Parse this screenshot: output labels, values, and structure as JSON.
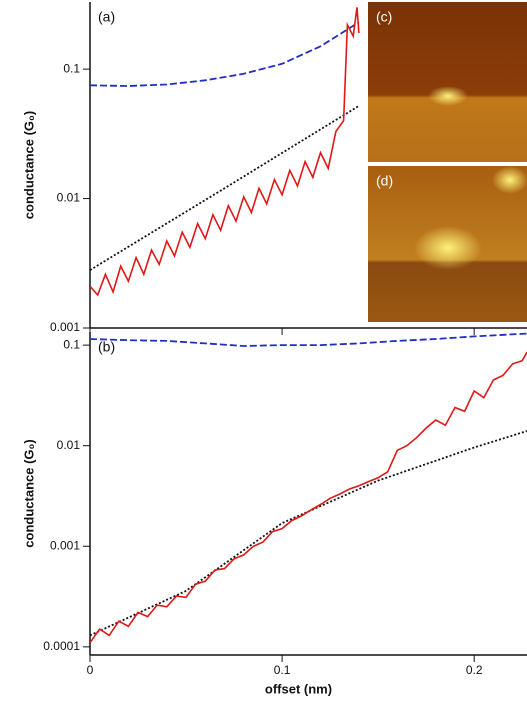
{
  "chart_data": [
    {
      "type": "line",
      "label": "(a)",
      "ylabel": "conductance (G₀)",
      "log_y": true,
      "xlim": [
        0,
        0.2275
      ],
      "xticks": [
        0,
        0.1,
        0.2
      ],
      "ylim": [
        0.001,
        0.33
      ],
      "yticks": [
        0.001,
        0.01,
        0.1
      ],
      "series": [
        {
          "color": "#1f2fc8",
          "style": "dashed",
          "x": [
            0,
            0.02,
            0.04,
            0.06,
            0.08,
            0.1,
            0.12,
            0.14
          ],
          "values": [
            0.075,
            0.074,
            0.076,
            0.082,
            0.092,
            0.11,
            0.15,
            0.23
          ]
        },
        {
          "color": "#111111",
          "style": "dotted",
          "x": [
            0,
            0.035,
            0.07,
            0.105,
            0.14
          ],
          "values": [
            0.0028,
            0.0058,
            0.012,
            0.025,
            0.052
          ]
        },
        {
          "color": "#e01818",
          "style": "solid",
          "x": [
            0,
            0.004,
            0.008,
            0.012,
            0.016,
            0.02,
            0.024,
            0.028,
            0.032,
            0.036,
            0.04,
            0.044,
            0.048,
            0.052,
            0.056,
            0.06,
            0.064,
            0.068,
            0.072,
            0.076,
            0.08,
            0.084,
            0.088,
            0.092,
            0.096,
            0.1,
            0.104,
            0.108,
            0.112,
            0.116,
            0.12,
            0.124,
            0.128,
            0.132,
            0.134,
            0.137,
            0.139,
            0.14
          ],
          "values": [
            0.0021,
            0.0018,
            0.0026,
            0.0019,
            0.003,
            0.0023,
            0.0035,
            0.0026,
            0.004,
            0.0031,
            0.0047,
            0.0036,
            0.0055,
            0.0042,
            0.0064,
            0.0049,
            0.0075,
            0.0057,
            0.0088,
            0.0067,
            0.0103,
            0.0078,
            0.012,
            0.0091,
            0.014,
            0.0107,
            0.0165,
            0.0125,
            0.0193,
            0.0146,
            0.0226,
            0.0171,
            0.033,
            0.04,
            0.22,
            0.18,
            0.3,
            0.19
          ]
        }
      ]
    },
    {
      "type": "line",
      "label": "(b)",
      "ylabel": "conductance (G₀)",
      "xlabel": "offset (nm)",
      "log_y": true,
      "xlim": [
        0,
        0.2275
      ],
      "xticks": [
        0,
        0.1,
        0.2
      ],
      "ylim": [
        8.3e-05,
        0.135
      ],
      "yticks": [
        0.0001,
        0.001,
        0.01,
        0.1
      ],
      "series": [
        {
          "color": "#1f2fc8",
          "style": "dashed",
          "x": [
            0,
            0.02,
            0.04,
            0.06,
            0.08,
            0.1,
            0.12,
            0.14,
            0.16,
            0.18,
            0.2,
            0.2275
          ],
          "values": [
            0.115,
            0.112,
            0.11,
            0.104,
            0.098,
            0.1,
            0.1,
            0.104,
            0.11,
            0.115,
            0.122,
            0.13
          ]
        },
        {
          "color": "#111111",
          "style": "dotted",
          "x": [
            0,
            0.05,
            0.1,
            0.15,
            0.2,
            0.2275
          ],
          "values": [
            0.00013,
            0.00036,
            0.0017,
            0.0045,
            0.0096,
            0.014
          ]
        },
        {
          "color": "#e01818",
          "style": "solid",
          "x": [
            0,
            0.005,
            0.01,
            0.015,
            0.02,
            0.025,
            0.03,
            0.035,
            0.04,
            0.045,
            0.05,
            0.055,
            0.06,
            0.065,
            0.07,
            0.075,
            0.08,
            0.085,
            0.09,
            0.095,
            0.1,
            0.105,
            0.11,
            0.115,
            0.12,
            0.125,
            0.13,
            0.135,
            0.14,
            0.145,
            0.15,
            0.155,
            0.16,
            0.165,
            0.17,
            0.175,
            0.18,
            0.185,
            0.19,
            0.195,
            0.2,
            0.205,
            0.21,
            0.215,
            0.22,
            0.225,
            0.2275
          ],
          "values": [
            0.00011,
            0.00015,
            0.00013,
            0.00018,
            0.00016,
            0.00022,
            0.0002,
            0.00026,
            0.00025,
            0.00032,
            0.00031,
            0.00042,
            0.00045,
            0.00058,
            0.0006,
            0.00075,
            0.00082,
            0.001,
            0.0011,
            0.0014,
            0.0015,
            0.0018,
            0.002,
            0.0023,
            0.0026,
            0.003,
            0.0033,
            0.0037,
            0.004,
            0.0044,
            0.0048,
            0.0055,
            0.009,
            0.01,
            0.012,
            0.015,
            0.018,
            0.016,
            0.024,
            0.022,
            0.035,
            0.03,
            0.045,
            0.05,
            0.065,
            0.07,
            0.085
          ]
        }
      ]
    }
  ],
  "insets": [
    {
      "label": "(c)"
    },
    {
      "label": "(d)"
    }
  ]
}
